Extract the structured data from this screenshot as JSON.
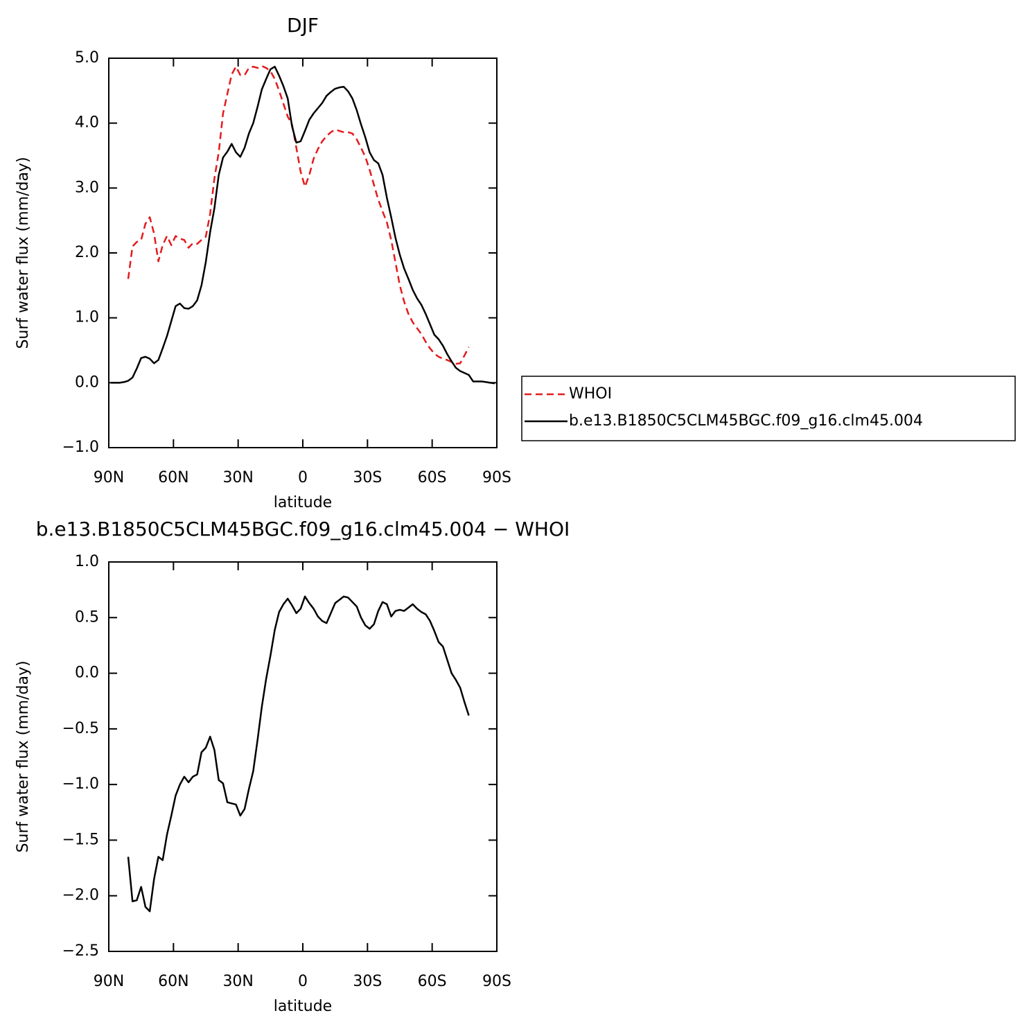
{
  "chart_data": [
    {
      "type": "line",
      "title": "DJF",
      "xlabel": "latitude",
      "ylabel": "Surf water flux (mm/day)",
      "x": [
        89,
        87,
        85,
        83,
        81,
        79,
        77,
        75,
        73,
        71,
        69,
        67,
        65,
        63,
        61,
        59,
        57,
        55,
        53,
        51,
        49,
        47,
        45,
        43,
        41,
        39,
        37,
        35,
        33,
        31,
        29,
        27,
        25,
        23,
        21,
        19,
        17,
        15,
        13,
        11,
        9,
        7,
        5,
        3,
        1,
        -1,
        -3,
        -5,
        -7,
        -9,
        -11,
        -13,
        -15,
        -17,
        -19,
        -21,
        -23,
        -25,
        -27,
        -29,
        -31,
        -33,
        -35,
        -37,
        -39,
        -41,
        -43,
        -45,
        -47,
        -49,
        -51,
        -53,
        -55,
        -57,
        -59,
        -61,
        -63,
        -65,
        -67,
        -69,
        -71,
        -73,
        -75,
        -77,
        -79,
        -81,
        -83,
        -85,
        -87,
        -89
      ],
      "xlim": [
        90,
        -90
      ],
      "xticks": [
        {
          "value": 90,
          "label": "90N"
        },
        {
          "value": 60,
          "label": "60N"
        },
        {
          "value": 30,
          "label": "30N"
        },
        0,
        {
          "value": -30,
          "label": "30S"
        },
        {
          "value": -60,
          "label": "60S"
        },
        {
          "value": -90,
          "label": "90S"
        }
      ],
      "ylim": [
        -1,
        5
      ],
      "yticks": [
        {
          "value": -1,
          "label": "−1.0"
        },
        {
          "value": 0,
          "label": "0.0"
        },
        {
          "value": 1,
          "label": "1.0"
        },
        {
          "value": 2,
          "label": "2.0"
        },
        {
          "value": 3,
          "label": "3.0"
        },
        {
          "value": 4,
          "label": "4.0"
        },
        {
          "value": 5,
          "label": "5.0"
        }
      ],
      "legend": "right",
      "series": [
        {
          "name": "WHOI",
          "color": "#e41a1c",
          "style": "dashed",
          "values": [
            null,
            null,
            null,
            null,
            1.6,
            2.1,
            2.17,
            2.2,
            2.45,
            2.55,
            2.3,
            1.87,
            2.12,
            2.26,
            2.12,
            2.26,
            2.22,
            2.2,
            2.08,
            2.15,
            2.14,
            2.2,
            2.25,
            2.6,
            3.15,
            3.55,
            4.15,
            4.45,
            4.75,
            4.87,
            4.74,
            4.74,
            4.85,
            4.87,
            4.85,
            4.88,
            4.85,
            4.8,
            4.68,
            4.5,
            4.3,
            4.1,
            3.98,
            3.62,
            3.25,
            3.02,
            3.2,
            3.45,
            3.6,
            3.72,
            3.8,
            3.86,
            3.9,
            3.88,
            3.86,
            3.86,
            3.84,
            3.75,
            3.62,
            3.48,
            3.28,
            3.05,
            2.82,
            2.64,
            2.47,
            2.2,
            1.85,
            1.5,
            1.25,
            1.06,
            0.93,
            0.84,
            0.75,
            0.63,
            0.53,
            0.45,
            0.4,
            0.37,
            0.35,
            0.32,
            0.29,
            0.3,
            0.42,
            0.55,
            null,
            null,
            null,
            null,
            null,
            null
          ]
        },
        {
          "name": "b.e13.B1850C5CLM45BGC.f09_g16.clm45.004",
          "color": "#000000",
          "style": "solid",
          "values": [
            0,
            0,
            0,
            0.01,
            0.03,
            0.08,
            0.22,
            0.38,
            0.4,
            0.37,
            0.3,
            0.35,
            0.53,
            0.72,
            0.95,
            1.18,
            1.22,
            1.15,
            1.14,
            1.18,
            1.27,
            1.5,
            1.86,
            2.32,
            2.69,
            3.2,
            3.47,
            3.56,
            3.68,
            3.55,
            3.48,
            3.62,
            3.84,
            4.0,
            4.25,
            4.52,
            4.68,
            4.83,
            4.87,
            4.73,
            4.57,
            4.38,
            3.95,
            3.7,
            3.72,
            3.88,
            4.05,
            4.15,
            4.23,
            4.31,
            4.42,
            4.48,
            4.53,
            4.55,
            4.56,
            4.49,
            4.38,
            4.2,
            3.98,
            3.78,
            3.55,
            3.43,
            3.38,
            3.2,
            2.85,
            2.55,
            2.23,
            1.97,
            1.76,
            1.6,
            1.43,
            1.3,
            1.2,
            1.06,
            0.9,
            0.74,
            0.67,
            0.57,
            0.44,
            0.33,
            0.23,
            0.18,
            0.15,
            0.12,
            0.02,
            0.02,
            0.02,
            0.01,
            0,
            -0.01
          ]
        }
      ]
    },
    {
      "type": "line",
      "title": "b.e13.B1850C5CLM45BGC.f09_g16.clm45.004 − WHOI",
      "xlabel": "latitude",
      "ylabel": "Surf water flux (mm/day)",
      "x": [
        89,
        87,
        85,
        83,
        81,
        79,
        77,
        75,
        73,
        71,
        69,
        67,
        65,
        63,
        61,
        59,
        57,
        55,
        53,
        51,
        49,
        47,
        45,
        43,
        41,
        39,
        37,
        35,
        33,
        31,
        29,
        27,
        25,
        23,
        21,
        19,
        17,
        15,
        13,
        11,
        9,
        7,
        5,
        3,
        1,
        -1,
        -3,
        -5,
        -7,
        -9,
        -11,
        -13,
        -15,
        -17,
        -19,
        -21,
        -23,
        -25,
        -27,
        -29,
        -31,
        -33,
        -35,
        -37,
        -39,
        -41,
        -43,
        -45,
        -47,
        -49,
        -51,
        -53,
        -55,
        -57,
        -59,
        -61,
        -63,
        -65,
        -67,
        -69,
        -71,
        -73,
        -75,
        -77,
        -79,
        -81,
        -83,
        -85,
        -87,
        -89
      ],
      "xlim": [
        90,
        -90
      ],
      "xticks": [
        {
          "value": 90,
          "label": "90N"
        },
        {
          "value": 60,
          "label": "60N"
        },
        {
          "value": 30,
          "label": "30N"
        },
        0,
        {
          "value": -30,
          "label": "30S"
        },
        {
          "value": -60,
          "label": "60S"
        },
        {
          "value": -90,
          "label": "90S"
        }
      ],
      "ylim": [
        -2.5,
        1
      ],
      "yticks": [
        {
          "value": -2.5,
          "label": "−2.5"
        },
        {
          "value": -2,
          "label": "−2.0"
        },
        {
          "value": -1.5,
          "label": "−1.5"
        },
        {
          "value": -1,
          "label": "−1.0"
        },
        {
          "value": -0.5,
          "label": "−0.5"
        },
        {
          "value": 0,
          "label": "0.0"
        },
        0.5,
        {
          "value": 1,
          "label": "1.0"
        }
      ],
      "series": [
        {
          "color": "#000000",
          "style": "solid",
          "values": [
            null,
            null,
            null,
            null,
            -1.65,
            -2.05,
            -2.04,
            -1.92,
            -2.1,
            -2.14,
            -1.85,
            -1.65,
            -1.68,
            -1.45,
            -1.28,
            -1.1,
            -1.0,
            -0.93,
            -0.98,
            -0.93,
            -0.91,
            -0.71,
            -0.67,
            -0.57,
            -0.69,
            -0.96,
            -0.99,
            -1.16,
            -1.17,
            -1.18,
            -1.28,
            -1.22,
            -1.04,
            -0.88,
            -0.6,
            -0.3,
            -0.05,
            0.16,
            0.39,
            0.55,
            0.62,
            0.67,
            0.61,
            0.54,
            0.58,
            0.69,
            0.63,
            0.58,
            0.51,
            0.47,
            0.45,
            0.54,
            0.63,
            0.66,
            0.69,
            0.68,
            0.64,
            0.6,
            0.5,
            0.43,
            0.4,
            0.44,
            0.56,
            0.64,
            0.62,
            0.51,
            0.56,
            0.57,
            0.56,
            0.59,
            0.62,
            0.58,
            0.55,
            0.53,
            0.47,
            0.38,
            0.28,
            0.24,
            0.12,
            0.0,
            -0.06,
            -0.13,
            -0.26,
            -0.38,
            null,
            null,
            null,
            null,
            null,
            null
          ]
        }
      ]
    }
  ]
}
